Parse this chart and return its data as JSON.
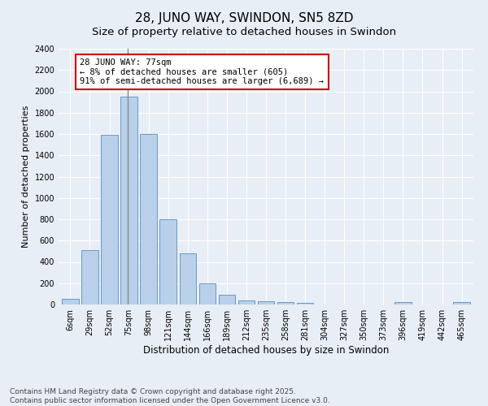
{
  "title": "28, JUNO WAY, SWINDON, SN5 8ZD",
  "subtitle": "Size of property relative to detached houses in Swindon",
  "xlabel": "Distribution of detached houses by size in Swindon",
  "ylabel": "Number of detached properties",
  "categories": [
    "6sqm",
    "29sqm",
    "52sqm",
    "75sqm",
    "98sqm",
    "121sqm",
    "144sqm",
    "166sqm",
    "189sqm",
    "212sqm",
    "235sqm",
    "258sqm",
    "281sqm",
    "304sqm",
    "327sqm",
    "350sqm",
    "373sqm",
    "396sqm",
    "419sqm",
    "442sqm",
    "465sqm"
  ],
  "values": [
    50,
    510,
    1590,
    1950,
    1600,
    800,
    480,
    200,
    95,
    40,
    30,
    25,
    12,
    0,
    0,
    0,
    0,
    20,
    0,
    0,
    20
  ],
  "bar_color": "#b8d0ea",
  "bar_edge_color": "#5a8fc2",
  "highlight_index": 3,
  "highlight_line_color": "#888888",
  "annotation_text": "28 JUNO WAY: 77sqm\n← 8% of detached houses are smaller (605)\n91% of semi-detached houses are larger (6,689) →",
  "annotation_box_color": "#ffffff",
  "annotation_box_edge_color": "#cc0000",
  "ylim": [
    0,
    2400
  ],
  "yticks": [
    0,
    200,
    400,
    600,
    800,
    1000,
    1200,
    1400,
    1600,
    1800,
    2000,
    2200,
    2400
  ],
  "background_color": "#e8eef6",
  "grid_color": "#ffffff",
  "footer_line1": "Contains HM Land Registry data © Crown copyright and database right 2025.",
  "footer_line2": "Contains public sector information licensed under the Open Government Licence v3.0.",
  "title_fontsize": 11,
  "xlabel_fontsize": 8.5,
  "ylabel_fontsize": 8,
  "tick_fontsize": 7,
  "footer_fontsize": 6.5,
  "annotation_fontsize": 7.5
}
